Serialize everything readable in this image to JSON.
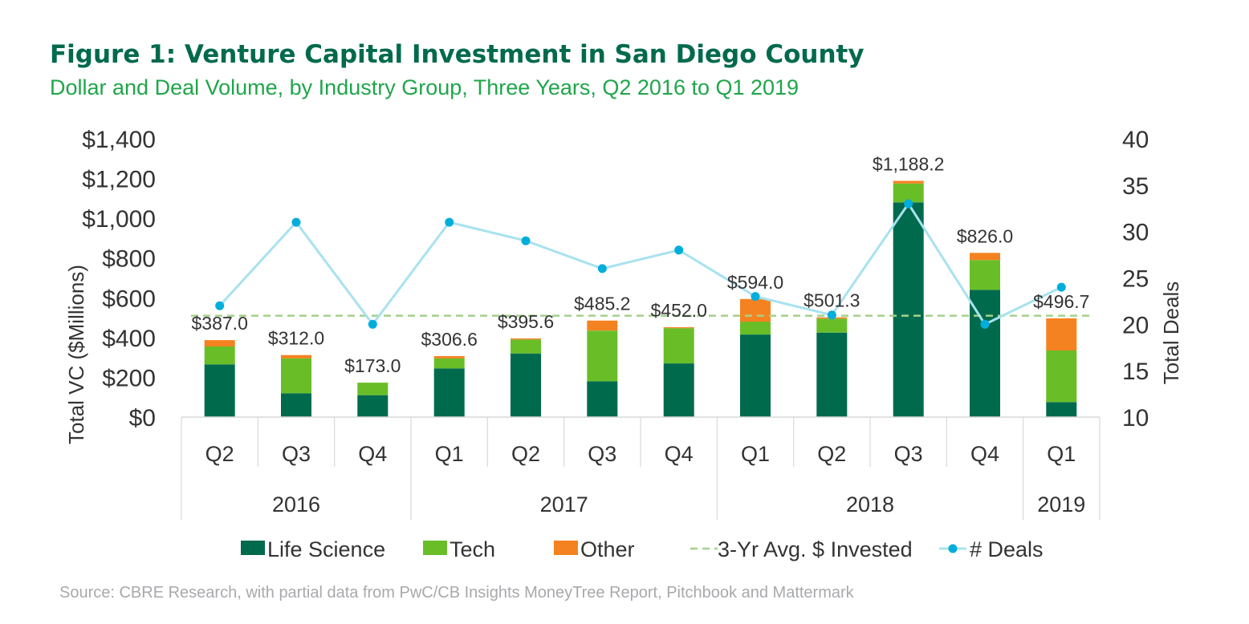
{
  "title": "Figure 1: Venture Capital Investment in San Diego County",
  "subtitle": "Dollar and Deal Volume, by Industry Group, Three Years, Q2 2016 to Q1 2019",
  "source": "Source: CBRE Research, with partial data from PwC/CB Insights MoneyTree Report, Pitchbook and Mattermark",
  "colors": {
    "life_science": "#006a4d",
    "tech": "#69be28",
    "other": "#f58220",
    "avg_line": "#a4d18c",
    "deals_line": "#a8e2ef",
    "deals_marker": "#00aedb",
    "axis_text": "#333333"
  },
  "chart_data": {
    "type": "bar",
    "stacked": true,
    "categories": [
      "Q2",
      "Q3",
      "Q4",
      "Q1",
      "Q2",
      "Q3",
      "Q4",
      "Q1",
      "Q2",
      "Q3",
      "Q4",
      "Q1"
    ],
    "year_groups": [
      {
        "label": "2016",
        "count": 3
      },
      {
        "label": "2017",
        "count": 4
      },
      {
        "label": "2018",
        "count": 4
      },
      {
        "label": "2019",
        "count": 1
      }
    ],
    "series": [
      {
        "name": "Life Science",
        "values": [
          265,
          120,
          110,
          245,
          320,
          180,
          270,
          415,
          425,
          1080,
          640,
          75
        ]
      },
      {
        "name": "Tech",
        "values": [
          90,
          175,
          63,
          50,
          70,
          255,
          177,
          65,
          70,
          95,
          150,
          260
        ]
      },
      {
        "name": "Other",
        "values": [
          32,
          17,
          0,
          11.6,
          5.6,
          50.2,
          5,
          114,
          6.3,
          13.2,
          36,
          161.7
        ]
      }
    ],
    "totals": [
      387.0,
      312.0,
      173.0,
      306.6,
      395.6,
      485.2,
      452.0,
      594.0,
      501.3,
      1188.2,
      826.0,
      496.7
    ],
    "total_labels": [
      "$387.0",
      "$312.0",
      "$173.0",
      "$306.6",
      "$395.6",
      "$485.2",
      "$452.0",
      "$594.0",
      "$501.3",
      "$1,188.2",
      "$826.0",
      "$496.7"
    ],
    "avg_line": {
      "name": "3-Yr Avg. $ Invested",
      "value": 510
    },
    "deals": {
      "name": "# Deals",
      "values": [
        22,
        31,
        20,
        31,
        29,
        26,
        28,
        23,
        21,
        33,
        20,
        24
      ]
    },
    "ylabel": "Total VC ($Millions)",
    "y2label": "Total Deals",
    "ylim": [
      0,
      1400
    ],
    "y2lim": [
      10,
      40
    ],
    "yticks": [
      "$0",
      "$200",
      "$400",
      "$600",
      "$800",
      "$1,000",
      "$1,200",
      "$1,400"
    ],
    "y2ticks": [
      "10",
      "15",
      "20",
      "25",
      "30",
      "35",
      "40"
    ],
    "legend_position": "bottom"
  }
}
